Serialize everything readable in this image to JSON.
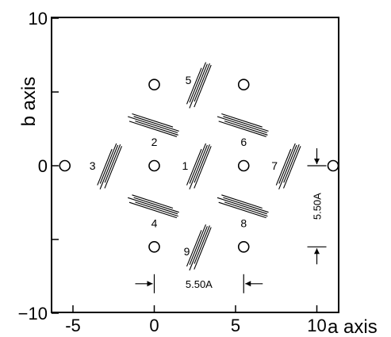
{
  "axes": {
    "x_title": "a axis",
    "y_title": "b axis",
    "x_range": [
      -7,
      12
    ],
    "y_range": [
      -10,
      10
    ],
    "x_ticks": [
      {
        "value": -5,
        "label": "-5"
      },
      {
        "value": 0,
        "label": "0"
      },
      {
        "value": 5,
        "label": "5"
      },
      {
        "value": 10,
        "label": "10"
      }
    ],
    "y_ticks": [
      {
        "value": -10,
        "label": "−10"
      },
      {
        "value": 0,
        "label": "0"
      },
      {
        "value": 10,
        "label": "10"
      }
    ],
    "y_minor_ticks": [
      -5,
      5
    ]
  },
  "atoms": [
    {
      "a": -5.5,
      "b": 0
    },
    {
      "a": 0,
      "b": 5.5
    },
    {
      "a": 5.5,
      "b": 5.5
    },
    {
      "a": 0,
      "b": 0
    },
    {
      "a": 5.5,
      "b": 0
    },
    {
      "a": 11,
      "b": 0
    },
    {
      "a": 0,
      "b": -5.5
    },
    {
      "a": 5.5,
      "b": -5.5
    }
  ],
  "molecules": [
    {
      "label": "1",
      "a": 2.75,
      "b": 0,
      "orientation": "steep",
      "label_a": 1.9,
      "label_b": 0
    },
    {
      "label": "2",
      "a": 0,
      "b": 2.75,
      "orientation": "shallow",
      "label_a": 0,
      "label_b": 1.6
    },
    {
      "label": "3",
      "a": -2.75,
      "b": 0,
      "orientation": "steep",
      "label_a": -3.8,
      "label_b": 0
    },
    {
      "label": "4",
      "a": 0,
      "b": -2.75,
      "orientation": "shallow",
      "label_a": 0,
      "label_b": -3.9
    },
    {
      "label": "5",
      "a": 2.75,
      "b": 5.5,
      "orientation": "steep",
      "label_a": 2.1,
      "label_b": 5.8
    },
    {
      "label": "6",
      "a": 5.5,
      "b": 2.75,
      "orientation": "shallow",
      "label_a": 5.5,
      "label_b": 1.6
    },
    {
      "label": "7",
      "a": 8.25,
      "b": 0,
      "orientation": "steep",
      "label_a": 7.4,
      "label_b": 0
    },
    {
      "label": "8",
      "a": 5.5,
      "b": -2.75,
      "orientation": "shallow",
      "label_a": 5.5,
      "label_b": -3.9
    },
    {
      "label": "9",
      "a": 2.75,
      "b": -5.5,
      "orientation": "steep",
      "label_a": 2.0,
      "label_b": -5.8
    }
  ],
  "dimensions": {
    "horizontal": {
      "label": "5.50A",
      "from_a": 0,
      "to_a": 5.5,
      "at_b": -8.0
    },
    "vertical": {
      "label": "5.50A",
      "from_b": 0,
      "to_b": -5.5,
      "at_a": 10
    }
  }
}
